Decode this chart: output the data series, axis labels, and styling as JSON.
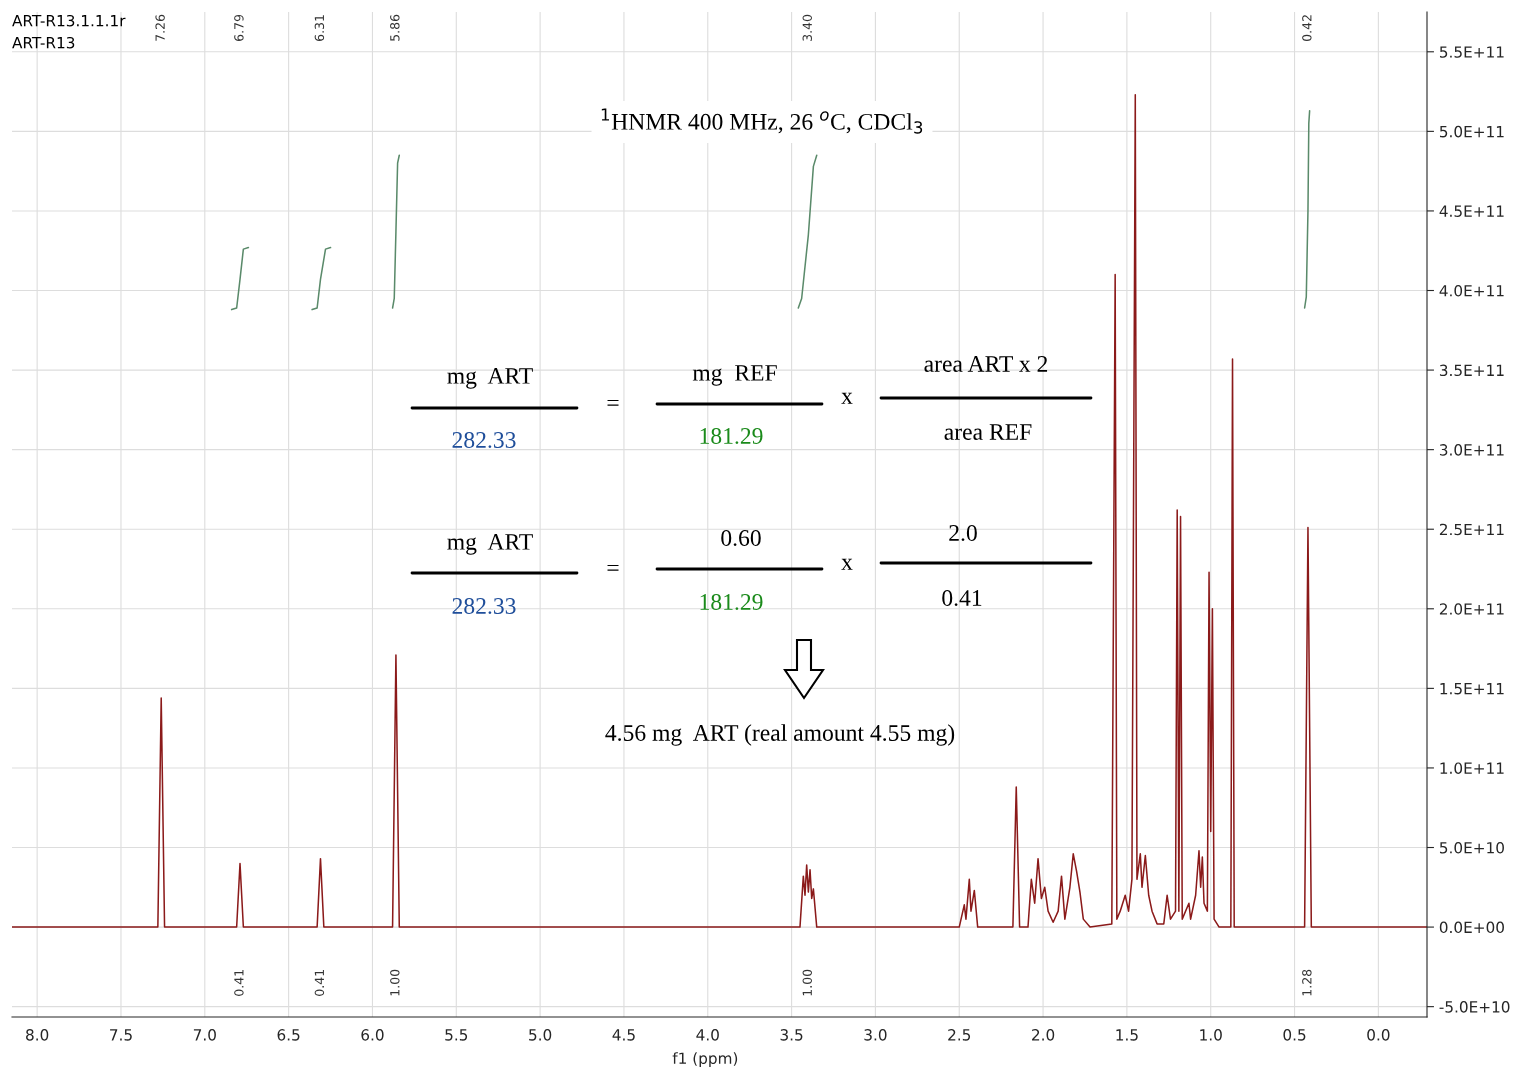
{
  "chart_data": {
    "type": "line",
    "xlabel": "f1 (ppm)",
    "xlim": [
      8.15,
      -0.29
    ],
    "ylim": [
      -56500000000.0,
      575000000000.0
    ],
    "xticks": [
      {
        "value": 8,
        "label": "8.0"
      },
      {
        "value": 7.5,
        "label": "7.5"
      },
      {
        "value": 7,
        "label": "7.0"
      },
      {
        "value": 6.5,
        "label": "6.5"
      },
      {
        "value": 6,
        "label": "6.0"
      },
      {
        "value": 5.5,
        "label": "5.5"
      },
      {
        "value": 5,
        "label": "5.0"
      },
      {
        "value": 4.5,
        "label": "4.5"
      },
      {
        "value": 4,
        "label": "4.0"
      },
      {
        "value": 3.5,
        "label": "3.5"
      },
      {
        "value": 3,
        "label": "3.0"
      },
      {
        "value": 2.5,
        "label": "2.5"
      },
      {
        "value": 2,
        "label": "2.0"
      },
      {
        "value": 1.5,
        "label": "1.5"
      },
      {
        "value": 1,
        "label": "1.0"
      },
      {
        "value": 0.5,
        "label": "0.5"
      },
      {
        "value": 0,
        "label": "0.0"
      }
    ],
    "yticks": [
      {
        "value": -50000000000.0,
        "label": "-5.0E+10"
      },
      {
        "value": 0,
        "label": "0.0E+00"
      },
      {
        "value": 50000000000.0,
        "label": "5.0E+10"
      },
      {
        "value": 100000000000.0,
        "label": "1.0E+11"
      },
      {
        "value": 150000000000.0,
        "label": "1.5E+11"
      },
      {
        "value": 200000000000.0,
        "label": "2.0E+11"
      },
      {
        "value": 250000000000.0,
        "label": "2.5E+11"
      },
      {
        "value": 300000000000.0,
        "label": "3.0E+11"
      },
      {
        "value": 350000000000.0,
        "label": "3.5E+11"
      },
      {
        "value": 400000000000.0,
        "label": "4.0E+11"
      },
      {
        "value": 450000000000.0,
        "label": "4.5E+11"
      },
      {
        "value": 500000000000.0,
        "label": "5.0E+11"
      },
      {
        "value": 550000000000.0,
        "label": "5.5E+11"
      }
    ],
    "grid": true,
    "series": [
      {
        "color": "#8b1a1a",
        "x": [
          8.15,
          7.28,
          7.26,
          7.24,
          6.81,
          6.79,
          6.77,
          6.33,
          6.31,
          6.29,
          5.88,
          5.86,
          5.84,
          3.45,
          3.43,
          3.42,
          3.41,
          3.4,
          3.39,
          3.38,
          3.37,
          3.35,
          2.5,
          2.47,
          2.46,
          2.44,
          2.43,
          2.41,
          2.39,
          2.18,
          2.16,
          2.14,
          2.09,
          2.07,
          2.05,
          2.03,
          2.01,
          1.99,
          1.97,
          1.94,
          1.91,
          1.89,
          1.87,
          1.84,
          1.82,
          1.8,
          1.78,
          1.76,
          1.72,
          1.59,
          1.57,
          1.56,
          1.54,
          1.51,
          1.49,
          1.47,
          1.45,
          1.44,
          1.42,
          1.41,
          1.39,
          1.37,
          1.35,
          1.32,
          1.28,
          1.26,
          1.24,
          1.21,
          1.2,
          1.19,
          1.18,
          1.17,
          1.13,
          1.12,
          1.09,
          1.07,
          1.06,
          1.05,
          1.04,
          1.02,
          1.01,
          1.0,
          0.99,
          0.98,
          0.95,
          0.88,
          0.87,
          0.86,
          0.44,
          0.42,
          0.4,
          -0.29
        ],
        "values": [
          0,
          0,
          144000000000.0,
          0,
          0,
          40000000000.0,
          0,
          0,
          43000000000.0,
          0,
          0,
          171000000000.0,
          0,
          0,
          32000000000.0,
          20000000000.0,
          39000000000.0,
          22000000000.0,
          36000000000.0,
          18000000000.0,
          24000000000.0,
          0,
          0,
          14000000000.0,
          5000000000.0,
          30000000000.0,
          10000000000.0,
          23000000000.0,
          0,
          0,
          88000000000.0,
          0,
          0,
          30000000000.0,
          15000000000.0,
          43000000000.0,
          18000000000.0,
          25000000000.0,
          10000000000.0,
          3000000000.0,
          10000000000.0,
          32000000000.0,
          5000000000.0,
          25000000000.0,
          46000000000.0,
          35000000000.0,
          22000000000.0,
          5000000000.0,
          0,
          2000000000.0,
          410000000000.0,
          5000000000.0,
          10000000000.0,
          20000000000.0,
          10000000000.0,
          30000000000.0,
          523000000000.0,
          30000000000.0,
          46000000000.0,
          25000000000.0,
          45000000000.0,
          20000000000.0,
          10000000000.0,
          2000000000.0,
          2000000000.0,
          20000000000.0,
          5000000000.0,
          10000000000.0,
          262000000000.0,
          10000000000.0,
          258000000000.0,
          5000000000.0,
          15000000000.0,
          5000000000.0,
          20000000000.0,
          48000000000.0,
          25000000000.0,
          44000000000.0,
          15000000000.0,
          10000000000.0,
          223000000000.0,
          60000000000.0,
          200000000000.0,
          5000000000.0,
          0,
          0,
          357000000000.0,
          0,
          0,
          251000000000.0,
          0,
          0
        ]
      },
      {
        "color": "#5a8a6a",
        "x": [
          6.84,
          6.81,
          6.79,
          6.77,
          6.74
        ],
        "values": [
          388000000000.0,
          389000000000.0,
          407000000000.0,
          426000000000.0,
          427000000000.0
        ]
      },
      {
        "color": "#5a8a6a",
        "x": [
          6.36,
          6.33,
          6.31,
          6.28,
          6.25
        ],
        "values": [
          388000000000.0,
          389000000000.0,
          407000000000.0,
          426000000000.0,
          427000000000.0
        ]
      },
      {
        "color": "#5a8a6a",
        "x": [
          5.88,
          5.87,
          5.86,
          5.85,
          5.84
        ],
        "values": [
          389000000000.0,
          395000000000.0,
          437000000000.0,
          480000000000.0,
          485000000000.0
        ]
      },
      {
        "color": "#5a8a6a",
        "x": [
          3.46,
          3.44,
          3.4,
          3.37,
          3.35
        ],
        "values": [
          389000000000.0,
          395000000000.0,
          435000000000.0,
          478000000000.0,
          485000000000.0
        ]
      },
      {
        "color": "#5a8a6a",
        "x": [
          0.44,
          0.43,
          0.42,
          0.415,
          0.41
        ],
        "values": [
          389000000000.0,
          396000000000.0,
          450000000000.0,
          505000000000.0,
          513000000000.0
        ]
      }
    ],
    "annotations": [
      "ART-R13.1.1.1r",
      "ART-R13",
      "$^{1}$HNMR 400 MHz, 26 $^{o}$C, CDCl$_{3}$",
      "mg  ART",
      "282.33",
      "=",
      "mg  REF",
      "181.29",
      "x",
      "area ART x 2",
      "area REF",
      "mg  ART",
      "282.33",
      "=",
      "0.60",
      "181.29",
      "x",
      "2.0",
      "0.41",
      "4.56 mg  ART (real amount 4.55 mg)",
      {
        "text": "7.26",
        "x": 7.26,
        "y": 565000000000.0
      },
      {
        "text": "6.79",
        "x": 6.79,
        "y": 565000000000.0
      },
      {
        "text": "6.31",
        "x": 6.31,
        "y": 565000000000.0
      },
      {
        "text": "5.86",
        "x": 5.86,
        "y": 565000000000.0
      },
      {
        "text": "3.40",
        "x": 3.4,
        "y": 565000000000.0
      },
      {
        "text": "0.42",
        "x": 0.42,
        "y": 565000000000.0
      },
      {
        "text": "0.41",
        "x": 6.79,
        "y": -35000000000.0
      },
      {
        "text": "0.41",
        "x": 6.31,
        "y": -35000000000.0
      },
      {
        "text": "1.00",
        "x": 5.86,
        "y": -35000000000.0
      },
      {
        "text": "1.00",
        "x": 3.4,
        "y": -35000000000.0
      },
      {
        "text": "1.28",
        "x": 0.42,
        "y": -35000000000.0
      }
    ]
  }
}
